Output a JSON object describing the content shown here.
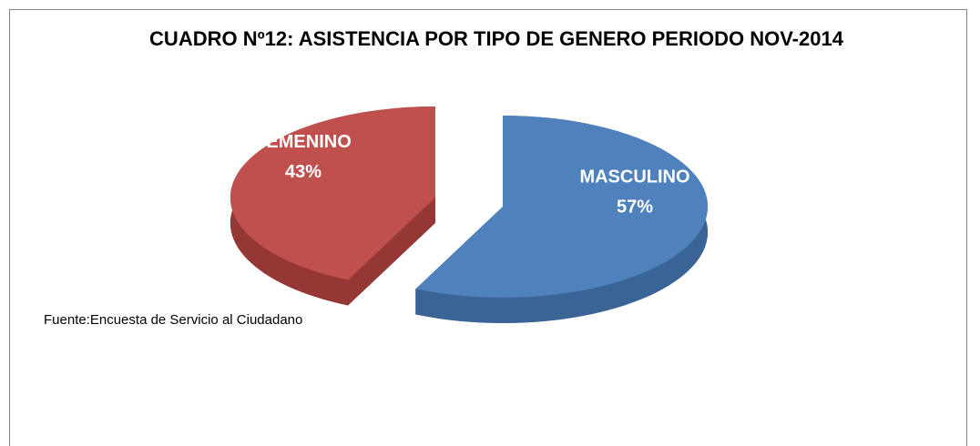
{
  "chart_data": {
    "type": "pie",
    "title": "CUADRO Nº12: ASISTENCIA POR TIPO DE GENERO PERIODO NOV-2014",
    "categories": [
      "MASCULINO",
      "FEMENINO"
    ],
    "values": [
      57,
      43
    ],
    "value_labels": [
      "57%",
      "43%"
    ],
    "colors": [
      "#4f81bd",
      "#c0504d"
    ],
    "side_colors": [
      "#3a6496",
      "#953735"
    ],
    "note": "Fuente:Encuesta de Servicio al Ciudadano"
  }
}
